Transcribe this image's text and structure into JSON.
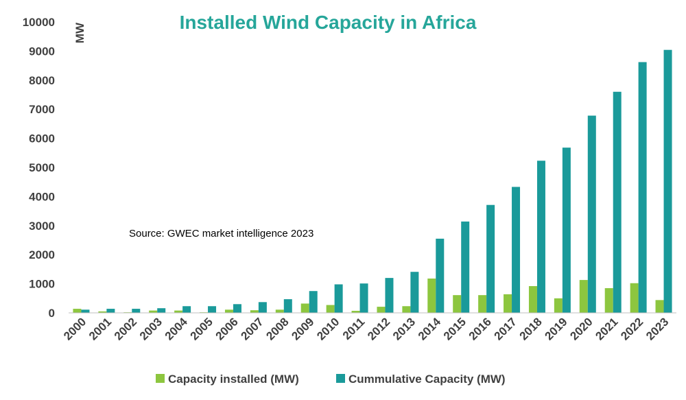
{
  "chart_data": {
    "type": "bar",
    "title": "Installed Wind Capacity in Africa",
    "ylabel": "MW",
    "xlabel": "",
    "ylim": [
      0,
      10000
    ],
    "yticks": [
      0,
      1000,
      2000,
      3000,
      4000,
      5000,
      6000,
      7000,
      8000,
      9000,
      10000
    ],
    "grid": false,
    "legend_position": "bottom",
    "annotation": "Source: GWEC market intelligence 2023",
    "categories": [
      "2000",
      "2001",
      "2002",
      "2003",
      "2004",
      "2005",
      "2006",
      "2007",
      "2008",
      "2009",
      "2010",
      "2011",
      "2012",
      "2013",
      "2014",
      "2015",
      "2016",
      "2017",
      "2018",
      "2019",
      "2020",
      "2021",
      "2022",
      "2023"
    ],
    "series": [
      {
        "name": "Capacity installed (MW)",
        "color": "#8dc63f",
        "values": [
          140,
          50,
          20,
          80,
          80,
          20,
          110,
          90,
          110,
          320,
          270,
          70,
          210,
          230,
          1180,
          610,
          610,
          640,
          920,
          500,
          1130,
          850,
          1020,
          440
        ]
      },
      {
        "name": "Cummulative Capacity (MW)",
        "color": "#1a9a9a",
        "values": [
          110,
          140,
          140,
          160,
          230,
          230,
          300,
          370,
          470,
          750,
          980,
          1010,
          1200,
          1410,
          2550,
          3140,
          3710,
          4330,
          5230,
          5680,
          6780,
          7600,
          8620,
          9040
        ]
      }
    ]
  }
}
